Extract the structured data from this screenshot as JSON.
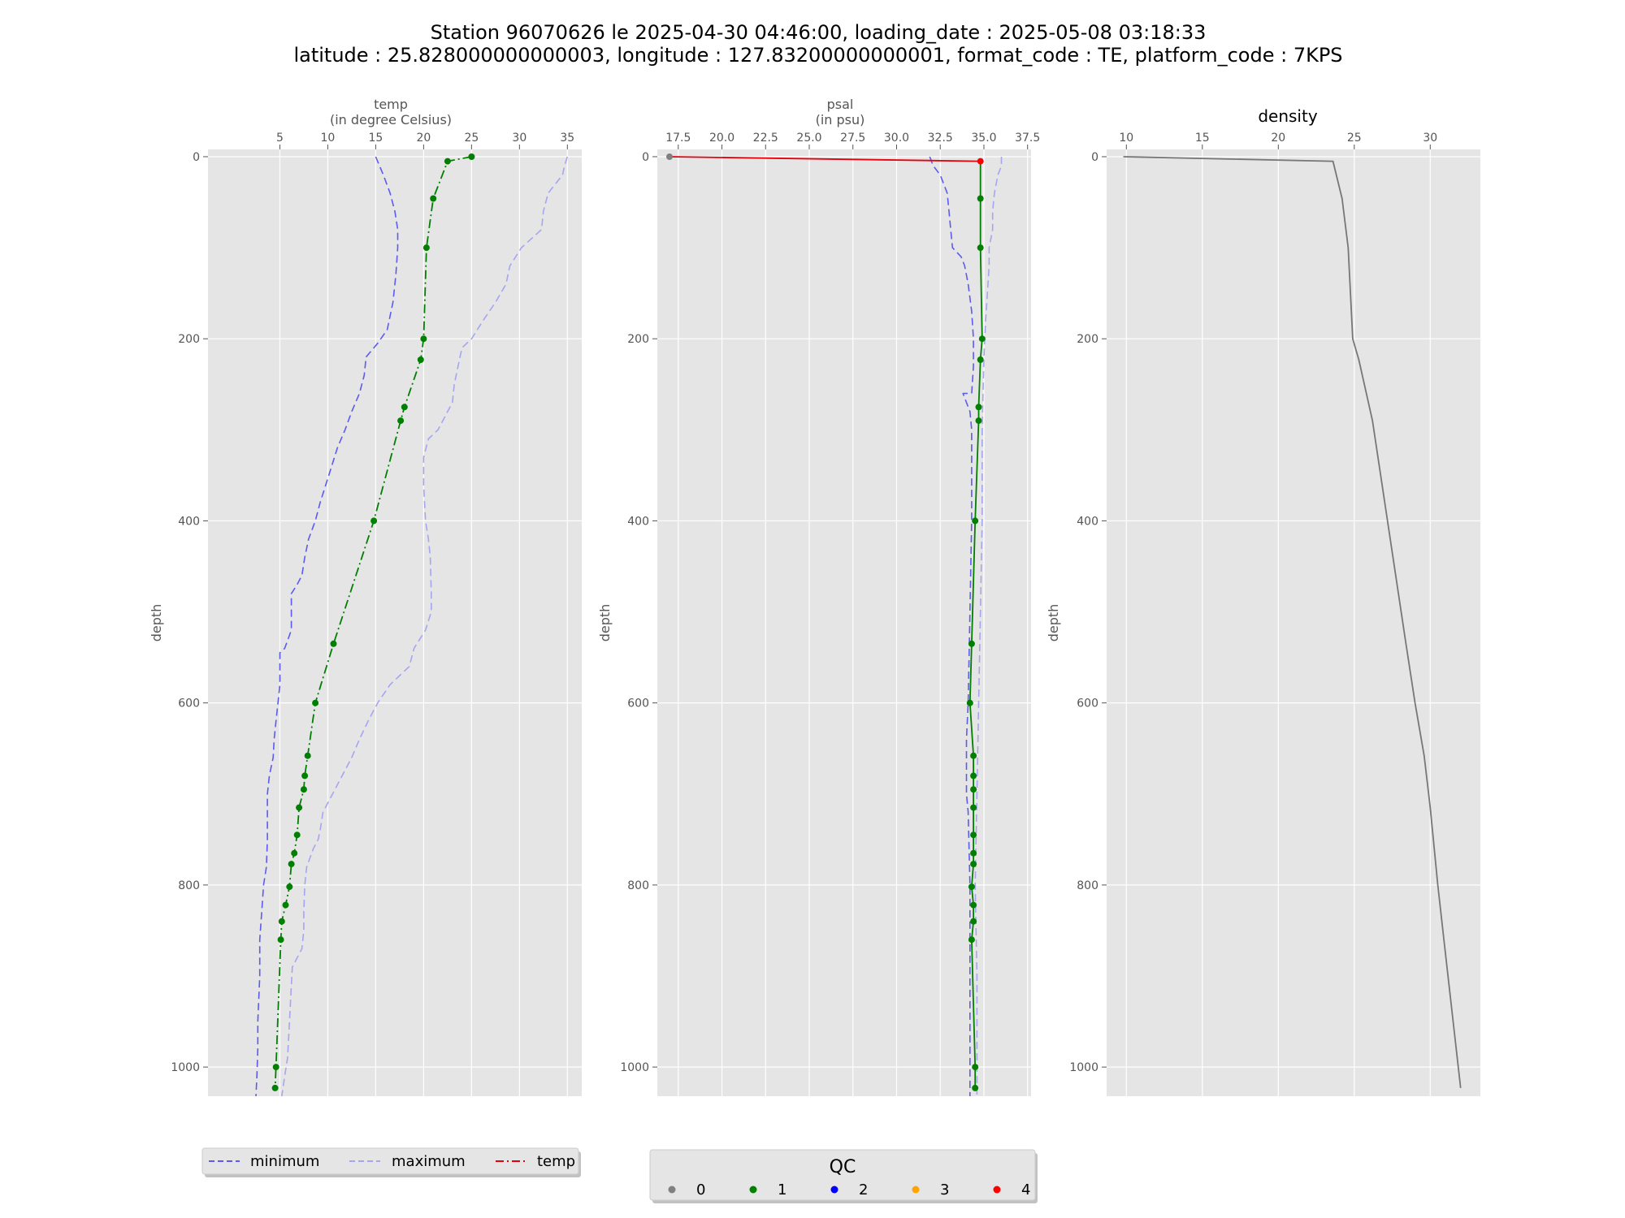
{
  "title_line1": "Station 96070626 le 2025-04-30 04:46:00, loading_date : 2025-05-08 03:18:33",
  "title_line2": "latitude : 25.828000000000003, longitude : 127.83200000000001, format_code : TE, platform_code : 7KPS",
  "colors": {
    "panel_bg": "#e5e5e5",
    "grid": "#ffffff",
    "minimum": "#5b5bef",
    "maximum": "#a5a5f2",
    "profile_ok": "#007f00",
    "profile_bad": "#e8000b",
    "density": "#777777",
    "qc0": "#808080",
    "qc1": "#008000",
    "qc2": "#0000ff",
    "qc3": "#ffa500",
    "qc4": "#ff0000"
  },
  "legend_lines": {
    "minimum": "minimum",
    "maximum": "maximum",
    "temp": "temp"
  },
  "legend_qc": {
    "title": "QC",
    "labels": [
      "0",
      "1",
      "2",
      "3",
      "4"
    ]
  },
  "chart_data": [
    {
      "type": "line",
      "name": "temp",
      "xlabel": "temp",
      "xlabel_sub": "(in degree Celsius)",
      "ylabel": "depth",
      "xlim": [
        -2.5,
        36.5
      ],
      "ylim": [
        1032,
        -8
      ],
      "y_inverted": true,
      "x_ticks": [
        "5",
        "10",
        "15",
        "20",
        "25",
        "30",
        "35"
      ],
      "y_ticks": [
        "0",
        "200",
        "400",
        "600",
        "800",
        "1000"
      ],
      "grid": true,
      "legend_placement": "below-left",
      "series": [
        {
          "name": "minimum",
          "style": "dashed",
          "points": [
            [
              15.0,
              0
            ],
            [
              15.8,
              20
            ],
            [
              16.5,
              40
            ],
            [
              17.0,
              60
            ],
            [
              17.3,
              80
            ],
            [
              17.3,
              100
            ],
            [
              17.1,
              130
            ],
            [
              16.8,
              160
            ],
            [
              16.2,
              190
            ],
            [
              15.2,
              205
            ],
            [
              14.0,
              220
            ],
            [
              13.8,
              240
            ],
            [
              13.3,
              260
            ],
            [
              12.5,
              280
            ],
            [
              11.8,
              300
            ],
            [
              11.0,
              320
            ],
            [
              10.4,
              340
            ],
            [
              9.8,
              360
            ],
            [
              9.2,
              380
            ],
            [
              8.7,
              400
            ],
            [
              8.0,
              420
            ],
            [
              7.6,
              440
            ],
            [
              7.3,
              460
            ],
            [
              6.8,
              470
            ],
            [
              6.2,
              480
            ],
            [
              6.2,
              500
            ],
            [
              6.2,
              520
            ],
            [
              5.5,
              540
            ],
            [
              5.0,
              545
            ],
            [
              5.0,
              560
            ],
            [
              5.0,
              580
            ],
            [
              4.8,
              600
            ],
            [
              4.6,
              620
            ],
            [
              4.4,
              640
            ],
            [
              4.3,
              660
            ],
            [
              3.9,
              680
            ],
            [
              3.7,
              700
            ],
            [
              3.7,
              720
            ],
            [
              3.7,
              750
            ],
            [
              3.6,
              780
            ],
            [
              3.3,
              800
            ],
            [
              3.1,
              830
            ],
            [
              2.9,
              860
            ],
            [
              2.9,
              900
            ],
            [
              2.7,
              950
            ],
            [
              2.7,
              980
            ],
            [
              2.6,
              1010
            ],
            [
              2.5,
              1032
            ]
          ]
        },
        {
          "name": "maximum",
          "style": "dashed",
          "points": [
            [
              35.0,
              0
            ],
            [
              34.7,
              10
            ],
            [
              34.5,
              20
            ],
            [
              33.0,
              40
            ],
            [
              32.5,
              60
            ],
            [
              32.3,
              80
            ],
            [
              30.2,
              100
            ],
            [
              29.0,
              120
            ],
            [
              28.6,
              140
            ],
            [
              27.5,
              160
            ],
            [
              26.2,
              180
            ],
            [
              25.0,
              200
            ],
            [
              24.0,
              210
            ],
            [
              23.6,
              230
            ],
            [
              23.2,
              250
            ],
            [
              23.0,
              270
            ],
            [
              22.0,
              290
            ],
            [
              21.5,
              300
            ],
            [
              20.5,
              310
            ],
            [
              20.0,
              330
            ],
            [
              20.0,
              360
            ],
            [
              20.2,
              400
            ],
            [
              20.5,
              420
            ],
            [
              20.7,
              440
            ],
            [
              20.8,
              480
            ],
            [
              20.8,
              500
            ],
            [
              20.2,
              520
            ],
            [
              19.0,
              540
            ],
            [
              18.5,
              560
            ],
            [
              17.5,
              570
            ],
            [
              16.5,
              580
            ],
            [
              15.2,
              600
            ],
            [
              14.2,
              620
            ],
            [
              13.3,
              640
            ],
            [
              12.5,
              660
            ],
            [
              11.5,
              680
            ],
            [
              10.5,
              700
            ],
            [
              9.5,
              720
            ],
            [
              9.2,
              740
            ],
            [
              9.0,
              750
            ],
            [
              8.5,
              760
            ],
            [
              7.8,
              780
            ],
            [
              7.6,
              800
            ],
            [
              7.5,
              830
            ],
            [
              7.5,
              850
            ],
            [
              7.3,
              870
            ],
            [
              6.8,
              880
            ],
            [
              6.3,
              890
            ],
            [
              6.2,
              910
            ],
            [
              6.0,
              950
            ],
            [
              5.9,
              970
            ],
            [
              5.8,
              990
            ],
            [
              5.5,
              1010
            ],
            [
              5.2,
              1032
            ]
          ]
        },
        {
          "name": "temp",
          "style": "dashdot",
          "qc": 1,
          "points": [
            [
              25.0,
              0
            ],
            [
              22.5,
              5
            ],
            [
              21.0,
              46
            ],
            [
              20.3,
              100
            ],
            [
              20.0,
              200
            ],
            [
              19.7,
              223
            ],
            [
              18.0,
              275
            ],
            [
              17.6,
              290
            ],
            [
              14.8,
              400
            ],
            [
              10.6,
              535
            ],
            [
              8.7,
              600
            ],
            [
              7.9,
              658
            ],
            [
              7.6,
              680
            ],
            [
              7.5,
              695
            ],
            [
              7.0,
              715
            ],
            [
              6.8,
              745
            ],
            [
              6.5,
              765
            ],
            [
              6.2,
              777
            ],
            [
              6.0,
              802
            ],
            [
              5.6,
              822
            ],
            [
              5.2,
              840
            ],
            [
              5.1,
              860
            ],
            [
              4.6,
              1000
            ],
            [
              4.5,
              1023
            ]
          ]
        }
      ]
    },
    {
      "type": "line",
      "name": "psal",
      "xlabel": "psal",
      "xlabel_sub": "(in psu)",
      "ylabel": "depth",
      "xlim": [
        16.3,
        37.7
      ],
      "ylim": [
        1032,
        -8
      ],
      "y_inverted": true,
      "x_ticks": [
        "17.5",
        "20.0",
        "22.5",
        "25.0",
        "27.5",
        "30.0",
        "32.5",
        "35.0",
        "37.5"
      ],
      "y_ticks": [
        "0",
        "200",
        "400",
        "600",
        "800",
        "1000"
      ],
      "grid": true,
      "series": [
        {
          "name": "minimum",
          "style": "dashed",
          "points": [
            [
              31.9,
              0
            ],
            [
              32.1,
              10
            ],
            [
              32.5,
              20
            ],
            [
              32.9,
              40
            ],
            [
              33.0,
              60
            ],
            [
              33.1,
              80
            ],
            [
              33.2,
              100
            ],
            [
              33.7,
              110
            ],
            [
              33.9,
              120
            ],
            [
              34.1,
              140
            ],
            [
              34.3,
              170
            ],
            [
              34.4,
              200
            ],
            [
              34.4,
              230
            ],
            [
              34.3,
              260
            ],
            [
              33.8,
              260
            ],
            [
              34.0,
              270
            ],
            [
              34.2,
              280
            ],
            [
              34.3,
              300
            ],
            [
              34.3,
              400
            ],
            [
              34.2,
              500
            ],
            [
              34.1,
              600
            ],
            [
              34.0,
              640
            ],
            [
              34.0,
              700
            ],
            [
              34.1,
              720
            ],
            [
              34.2,
              800
            ],
            [
              34.2,
              900
            ],
            [
              34.2,
              1000
            ],
            [
              34.2,
              1032
            ]
          ]
        },
        {
          "name": "maximum",
          "style": "dashed",
          "points": [
            [
              36.0,
              0
            ],
            [
              36.0,
              10
            ],
            [
              35.8,
              20
            ],
            [
              35.6,
              40
            ],
            [
              35.5,
              60
            ],
            [
              35.5,
              80
            ],
            [
              35.3,
              100
            ],
            [
              35.3,
              120
            ],
            [
              35.1,
              180
            ],
            [
              35.0,
              220
            ],
            [
              34.9,
              300
            ],
            [
              34.9,
              400
            ],
            [
              34.8,
              500
            ],
            [
              34.7,
              600
            ],
            [
              34.6,
              700
            ],
            [
              34.5,
              800
            ],
            [
              34.6,
              900
            ],
            [
              34.6,
              1000
            ],
            [
              34.6,
              1032
            ]
          ]
        },
        {
          "name": "psal",
          "style": "solid",
          "segments": [
            {
              "qc": 4,
              "points": [
                [
                  17.0,
                  0
                ],
                [
                  34.8,
                  5
                ]
              ]
            },
            {
              "qc": 1,
              "points": [
                [
                  34.8,
                  5
                ],
                [
                  34.8,
                  46
                ],
                [
                  34.8,
                  100
                ],
                [
                  34.9,
                  200
                ],
                [
                  34.8,
                  223
                ],
                [
                  34.7,
                  275
                ],
                [
                  34.7,
                  290
                ],
                [
                  34.5,
                  400
                ],
                [
                  34.3,
                  535
                ],
                [
                  34.2,
                  600
                ],
                [
                  34.4,
                  658
                ],
                [
                  34.4,
                  680
                ],
                [
                  34.4,
                  695
                ],
                [
                  34.4,
                  715
                ],
                [
                  34.4,
                  745
                ],
                [
                  34.4,
                  765
                ],
                [
                  34.4,
                  777
                ],
                [
                  34.3,
                  802
                ],
                [
                  34.4,
                  822
                ],
                [
                  34.4,
                  840
                ],
                [
                  34.3,
                  860
                ],
                [
                  34.5,
                  1000
                ],
                [
                  34.5,
                  1023
                ]
              ]
            }
          ],
          "markers": [
            {
              "qc": 0,
              "point": [
                17.0,
                0
              ]
            },
            {
              "qc": 4,
              "point": [
                34.8,
                5
              ]
            }
          ]
        }
      ]
    },
    {
      "type": "line",
      "name": "density",
      "title": "density",
      "ylabel": "depth",
      "xlim": [
        8.7,
        33.3
      ],
      "ylim": [
        1032,
        -8
      ],
      "y_inverted": true,
      "x_ticks": [
        "10",
        "15",
        "20",
        "25",
        "30"
      ],
      "y_ticks": [
        "0",
        "200",
        "400",
        "600",
        "800",
        "1000"
      ],
      "grid": true,
      "series": [
        {
          "name": "density",
          "style": "solid",
          "points": [
            [
              9.8,
              0
            ],
            [
              23.6,
              5
            ],
            [
              24.2,
              46
            ],
            [
              24.6,
              100
            ],
            [
              24.9,
              200
            ],
            [
              25.3,
              223
            ],
            [
              26.2,
              290
            ],
            [
              28.4,
              535
            ],
            [
              29.0,
              600
            ],
            [
              29.6,
              658
            ],
            [
              30.0,
              715
            ],
            [
              30.5,
              800
            ],
            [
              30.9,
              860
            ],
            [
              32.0,
              1023
            ]
          ]
        }
      ]
    }
  ]
}
